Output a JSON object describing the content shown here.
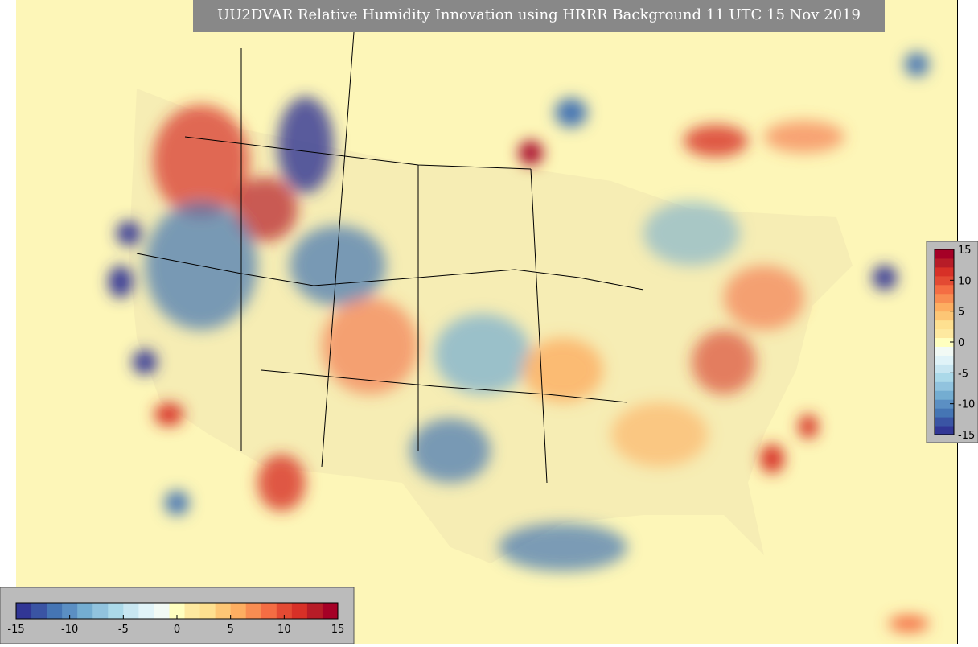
{
  "title": "UU2DVAR Relative Humidity Innovation using HRRR Background 11 UTC 15 Nov 2019",
  "colors": [
    "#313695",
    "#3a54a4",
    "#4575b4",
    "#5b8fc3",
    "#74add1",
    "#91c3de",
    "#abd9e9",
    "#c8e6f1",
    "#e0f3f8",
    "#f2faf5",
    "#ffffbf",
    "#fee9a0",
    "#fee090",
    "#fdc675",
    "#fdae61",
    "#f88d52",
    "#f46d43",
    "#e34a33",
    "#d73027",
    "#b71c27",
    "#a50026"
  ],
  "colorbars": [
    {
      "orientation": "vertical",
      "range": [
        -15,
        15
      ],
      "ticks": [
        15,
        10,
        5,
        0,
        -5,
        -10,
        -15
      ]
    },
    {
      "orientation": "horizontal",
      "range": [
        -15,
        15
      ],
      "ticks": [
        -15,
        -10,
        -5,
        0,
        5,
        10,
        15
      ]
    }
  ]
}
